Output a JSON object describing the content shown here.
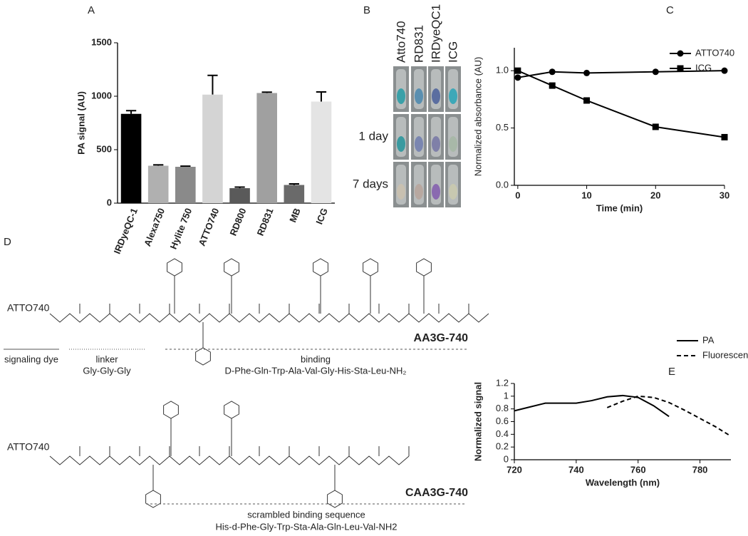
{
  "chart_data": [
    {
      "type": "bar",
      "panel": "A",
      "y_label": "PA signal (AU)",
      "categories": [
        "IRDyeQC-1",
        "Alexa750",
        "Hylite 750",
        "ATTO740",
        "RD800",
        "RD831",
        "MB",
        "ICG"
      ],
      "values": [
        835,
        350,
        340,
        1015,
        140,
        1030,
        170,
        950
      ],
      "errors": [
        30,
        8,
        6,
        180,
        10,
        8,
        10,
        90
      ],
      "colors": [
        "#000000",
        "#b0b0b0",
        "#8a8a8a",
        "#d4d4d4",
        "#5a5a5a",
        "#a0a0a0",
        "#6a6a6a",
        "#e4e4e4"
      ],
      "ylim": [
        0,
        1500
      ],
      "yticks": [
        0,
        500,
        1000,
        1500
      ]
    },
    {
      "type": "line",
      "panel": "C",
      "x_label": "Time (min)",
      "y_label": "Normalized absorbance (AU)",
      "x": [
        0,
        5,
        10,
        20,
        30
      ],
      "series": [
        {
          "name": "ATTO740",
          "color": "#000000",
          "marker": "circle",
          "values": [
            0.94,
            0.99,
            0.98,
            0.99,
            1.0
          ]
        },
        {
          "name": "ICG",
          "color": "#000000",
          "marker": "square",
          "values": [
            1.0,
            0.87,
            0.74,
            0.51,
            0.42
          ]
        }
      ],
      "xlim": [
        -0.5,
        30
      ],
      "xticks": [
        0,
        10,
        20,
        30
      ],
      "ylim": [
        0,
        1.2
      ],
      "yticks": [
        {
          "value": 0,
          "label": "0.0"
        },
        {
          "value": 0.5,
          "label": "0.5"
        },
        {
          "value": 1,
          "label": "1.0"
        }
      ],
      "legend": "upper right"
    },
    {
      "type": "line",
      "panel": "E",
      "x_label": "Wavelength (nm)",
      "y_label": "Normalized signal",
      "x": [
        720,
        725,
        730,
        735,
        740,
        745,
        750,
        755,
        760,
        765,
        770,
        775,
        780,
        785,
        790
      ],
      "series": [
        {
          "name": "PA",
          "color": "#000000",
          "dash": false,
          "values": [
            0.77,
            0.83,
            0.89,
            0.89,
            0.89,
            0.93,
            0.99,
            1.01,
            0.98,
            0.85,
            0.68,
            null,
            null,
            null,
            null
          ]
        },
        {
          "name": "Fluorescence",
          "color": "#000000",
          "dash": true,
          "values": [
            null,
            null,
            null,
            null,
            null,
            null,
            0.82,
            0.92,
            1.0,
            0.98,
            0.9,
            0.78,
            0.65,
            0.52,
            0.37
          ]
        }
      ],
      "xlim": [
        720,
        790
      ],
      "xticks": [
        720,
        740,
        760,
        780
      ],
      "ylim": [
        0,
        1.2
      ],
      "yticks": [
        0,
        0.2,
        0.4,
        0.6,
        0.8,
        1,
        1.2
      ],
      "legend": "upper right"
    }
  ],
  "photo": {
    "panel": "B",
    "columns": [
      "Atto740",
      "RD831",
      "IRDyeQC1",
      "ICG"
    ],
    "row_labels": [
      "1 day",
      "7 days"
    ]
  },
  "structures": {
    "panel": "D",
    "items": [
      {
        "dye": "ATTO740",
        "name": "AA3G-740",
        "segments": [
          {
            "label": "signaling dye"
          },
          {
            "label": "linker",
            "sequence": "Gly-Gly-Gly"
          },
          {
            "label": "binding",
            "sequence": "D-Phe-Gln-Trp-Ala-Val-Gly-His-Sta-Leu-NH₂"
          }
        ]
      },
      {
        "dye": "ATTO740",
        "name": "CAA3G-740",
        "segments": [
          {
            "label": "scrambled binding sequence",
            "sequence": "His-d-Phe-Gly-Trp-Sta-Ala-Gln-Leu-Val-NH2"
          }
        ]
      }
    ]
  }
}
